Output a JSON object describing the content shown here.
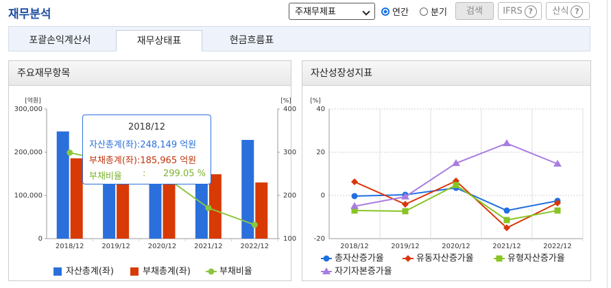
{
  "header": {
    "title": "재무분석",
    "select": "주재무제표",
    "radios": [
      "연간",
      "분기"
    ],
    "checked_radio": 0,
    "buttons": [
      "검색",
      "IFRS",
      "산식"
    ],
    "help_icon": "?"
  },
  "tabs": [
    "포괄손익계산서",
    "재무상태표",
    "현금흐름표"
  ],
  "active_tab": 1,
  "chart_data": [
    {
      "type": "bar",
      "title": "주요재무항목",
      "categories": [
        "2018/12",
        "2019/12",
        "2020/12",
        "2021/12",
        "2022/12"
      ],
      "y_label": "[억원]",
      "ylim": [
        0,
        300000
      ],
      "yticks": [
        0,
        {
          "value": 100000,
          "label": "100,000"
        },
        {
          "value": 200000,
          "label": "200,000"
        },
        {
          "value": 300000,
          "label": "300,000"
        }
      ],
      "y2_label": "[%]",
      "y2lim": [
        100,
        400
      ],
      "y2ticks": [
        100,
        200,
        300,
        400
      ],
      "series": [
        {
          "name": "자산총계(좌)",
          "color": "#2a6fdb",
          "values": [
            248149,
            235000,
            240000,
            238000,
            228500
          ]
        },
        {
          "name": "부채총계(좌)",
          "color": "#d83a06",
          "values": [
            185965,
            165000,
            160000,
            149000,
            130000
          ]
        },
        {
          "name": "부채비율",
          "color": "#8cc63f",
          "type": "line",
          "axis": "y2",
          "marker": "circle",
          "values": [
            299.05,
            275,
            248,
            171,
            132
          ]
        }
      ],
      "tooltip": {
        "title": "2018/12",
        "rows": [
          {
            "label": "자산총계(좌):",
            "value": "248,149 억원"
          },
          {
            "label": "부채총계(좌):",
            "value": "185,965 억원"
          },
          {
            "label": "부채비율",
            "sep": ":",
            "value": "299.05 %"
          }
        ]
      }
    },
    {
      "type": "line",
      "title": "자산성장성지표",
      "categories": [
        "2018/12",
        "2019/12",
        "2020/12",
        "2021/12",
        "2022/12"
      ],
      "y_label": "[%]",
      "ylim": [
        -20,
        40
      ],
      "yticks": [
        -20,
        0,
        20,
        40
      ],
      "grid": true,
      "series": [
        {
          "name": "총자산증가율",
          "color": "#1f6fe0",
          "marker": "circle",
          "values": [
            -0.3,
            0.3,
            3.5,
            -7,
            -2.5
          ]
        },
        {
          "name": "유동자산증가율",
          "color": "#d9360b",
          "marker": "diamond",
          "values": [
            6.3,
            -4.1,
            6.7,
            -15,
            -3.5
          ]
        },
        {
          "name": "유형자산증가율",
          "color": "#88c425",
          "marker": "square",
          "values": [
            -7,
            -7.3,
            4.8,
            -11.4,
            -7
          ]
        },
        {
          "name": "자기자본증가율",
          "color": "#a97de0",
          "marker": "triangle",
          "values": [
            -5,
            -0.6,
            14.9,
            24.1,
            14.6
          ]
        }
      ]
    }
  ]
}
